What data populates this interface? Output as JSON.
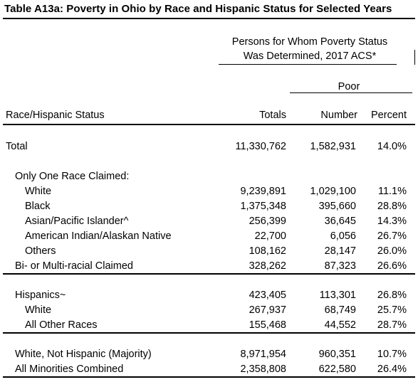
{
  "title": "Table A13a: Poverty in Ohio by Race and Hispanic Status for Selected Years",
  "header": {
    "group_line1": "Persons for Whom Poverty Status",
    "group_line2": "Was Determined, 2017 ACS*",
    "poor": "Poor",
    "col_label": "Race/Hispanic Status",
    "col_totals": "Totals",
    "col_number": "Number",
    "col_percent": "Percent"
  },
  "rows": {
    "total": {
      "label": "Total",
      "totals": "11,330,762",
      "number": "1,582,931",
      "percent": "14.0%"
    },
    "one_race": {
      "label": "Only One Race Claimed:"
    },
    "white": {
      "label": "White",
      "totals": "9,239,891",
      "number": "1,029,100",
      "percent": "11.1%"
    },
    "black": {
      "label": "Black",
      "totals": "1,375,348",
      "number": "395,660",
      "percent": "28.8%"
    },
    "asian": {
      "label": "Asian/Pacific Islander^",
      "totals": "256,399",
      "number": "36,645",
      "percent": "14.3%"
    },
    "amind": {
      "label": "American Indian/Alaskan Native",
      "totals": "22,700",
      "number": "6,056",
      "percent": "26.7%"
    },
    "others": {
      "label": "Others",
      "totals": "108,162",
      "number": "28,147",
      "percent": "26.0%"
    },
    "multi": {
      "label": "Bi- or Multi-racial Claimed",
      "totals": "328,262",
      "number": "87,323",
      "percent": "26.6%"
    },
    "hispanics": {
      "label": "Hispanics~",
      "totals": "423,405",
      "number": "113,301",
      "percent": "26.8%"
    },
    "hisp_white": {
      "label": "White",
      "totals": "267,937",
      "number": "68,749",
      "percent": "25.7%"
    },
    "hisp_other": {
      "label": "All Other Races",
      "totals": "155,468",
      "number": "44,552",
      "percent": "28.7%"
    },
    "white_nh": {
      "label": "White, Not Hispanic (Majority)",
      "totals": "8,971,954",
      "number": "960,351",
      "percent": "10.7%"
    },
    "minorities": {
      "label": "All Minorities Combined",
      "totals": "2,358,808",
      "number": "622,580",
      "percent": "26.4%"
    }
  }
}
